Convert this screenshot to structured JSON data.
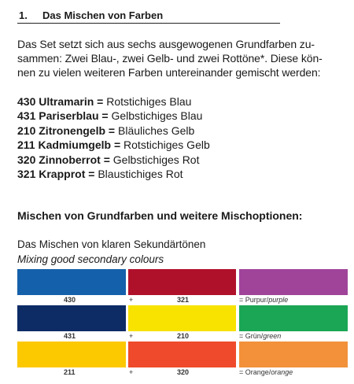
{
  "heading": {
    "number": "1.",
    "title": "Das Mischen von Farben"
  },
  "intro": {
    "lines": [
      "Das Set setzt sich aus sechs ausgewogenen Grundfarben zu-",
      "sammen: Zwei Blau-, zwei Gelb- und zwei Rottöne*. Diese kön-",
      "nen zu vielen weiteren Farben untereinander gemischt werden:"
    ]
  },
  "colors": {
    "separator": "=",
    "items": [
      {
        "code": "430",
        "name": "Ultramarin",
        "description": "Rotstichiges Blau"
      },
      {
        "code": "431",
        "name": "Pariserblau",
        "description": "Gelbstichiges Blau"
      },
      {
        "code": "210",
        "name": "Zitronengelb",
        "description": "Bläuliches Gelb"
      },
      {
        "code": "211",
        "name": "Kadmiumgelb",
        "description": "Rotstichiges Gelb"
      },
      {
        "code": "320",
        "name": "Zinnoberrot",
        "description": "Gelbstichiges Rot"
      },
      {
        "code": "321",
        "name": "Krapprot",
        "description": "Blaustichiges Rot"
      }
    ]
  },
  "section": {
    "title": "Mischen von Grundfarben und weitere Mischoptionen:",
    "subtitle": "Das Mischen von klaren Sekundärtönen",
    "subtitle_en": "Mixing good secondary colours"
  },
  "mixing": {
    "plus": "+",
    "rows": [
      {
        "a": {
          "code": "430",
          "color": "#1560ab"
        },
        "b": {
          "code": "321",
          "color": "#b0112a"
        },
        "result": {
          "color": "#a0449a",
          "label": "= Purpur/",
          "english": "purple"
        }
      },
      {
        "a": {
          "code": "431",
          "color": "#0d2c66"
        },
        "b": {
          "code": "210",
          "color": "#f7e200"
        },
        "result": {
          "color": "#1aa655",
          "label": "= Grün/",
          "english": "green"
        }
      },
      {
        "a": {
          "code": "211",
          "color": "#fcc800"
        },
        "b": {
          "code": "320",
          "color": "#ee4a2b"
        },
        "result": {
          "color": "#f2913a",
          "label": "= Orange/",
          "english": "orange"
        }
      }
    ]
  }
}
